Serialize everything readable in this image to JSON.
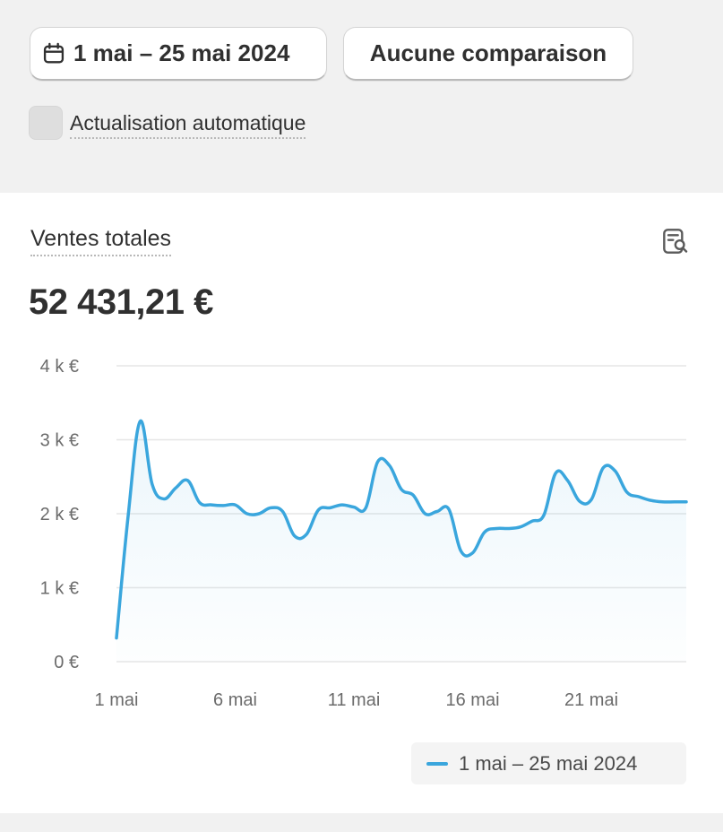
{
  "toolbar": {
    "date_range_label": "1 mai – 25 mai 2024",
    "compare_label": "Aucune comparaison",
    "auto_refresh_label": "Actualisation automatique",
    "auto_refresh_checked": false
  },
  "card": {
    "title": "Ventes totales",
    "total": "52 431,21 €",
    "legend_label": "1 mai – 25 mai 2024"
  },
  "colors": {
    "line": "#3aa6dd",
    "grid": "#e6e6e6",
    "axis_text": "#6b6b6b"
  },
  "chart_data": {
    "type": "line",
    "title": "Ventes totales",
    "xlabel": "",
    "ylabel": "",
    "ylim": [
      0,
      4000
    ],
    "y_ticks": [
      {
        "value": 0,
        "label": "0 €"
      },
      {
        "value": 1000,
        "label": "1 k €"
      },
      {
        "value": 2000,
        "label": "2 k €"
      },
      {
        "value": 3000,
        "label": "3 k €"
      },
      {
        "value": 4000,
        "label": "4 k €"
      }
    ],
    "x_ticks": [
      {
        "value": 1,
        "label": "1 mai"
      },
      {
        "value": 6,
        "label": "6 mai"
      },
      {
        "value": 11,
        "label": "11 mai"
      },
      {
        "value": 16,
        "label": "16 mai"
      },
      {
        "value": 21,
        "label": "21 mai"
      }
    ],
    "grid": true,
    "legend_position": "bottom-right",
    "series": [
      {
        "name": "1 mai – 25 mai 2024",
        "x": [
          1,
          1.5,
          2,
          2.5,
          3,
          3.5,
          4,
          4.5,
          5,
          5.5,
          6,
          6.5,
          7,
          7.5,
          8,
          8.5,
          9,
          9.5,
          10,
          10.5,
          11,
          11.5,
          12,
          12.5,
          13,
          13.5,
          14,
          14.5,
          15,
          15.5,
          16,
          16.5,
          17,
          17.5,
          18,
          18.5,
          19,
          19.5,
          20,
          20.5,
          21,
          21.5,
          22,
          22.5,
          23,
          23.5,
          24,
          24.5,
          25
        ],
        "y": [
          320,
          2000,
          3250,
          2400,
          2200,
          2350,
          2450,
          2150,
          2120,
          2110,
          2120,
          2000,
          2000,
          2080,
          2030,
          1700,
          1720,
          2050,
          2080,
          2120,
          2090,
          2080,
          2700,
          2650,
          2330,
          2250,
          2000,
          2030,
          2060,
          1500,
          1470,
          1750,
          1800,
          1800,
          1820,
          1900,
          1980,
          2550,
          2450,
          2170,
          2190,
          2620,
          2580,
          2290,
          2230,
          2180,
          2160,
          2160,
          2160
        ]
      }
    ]
  }
}
